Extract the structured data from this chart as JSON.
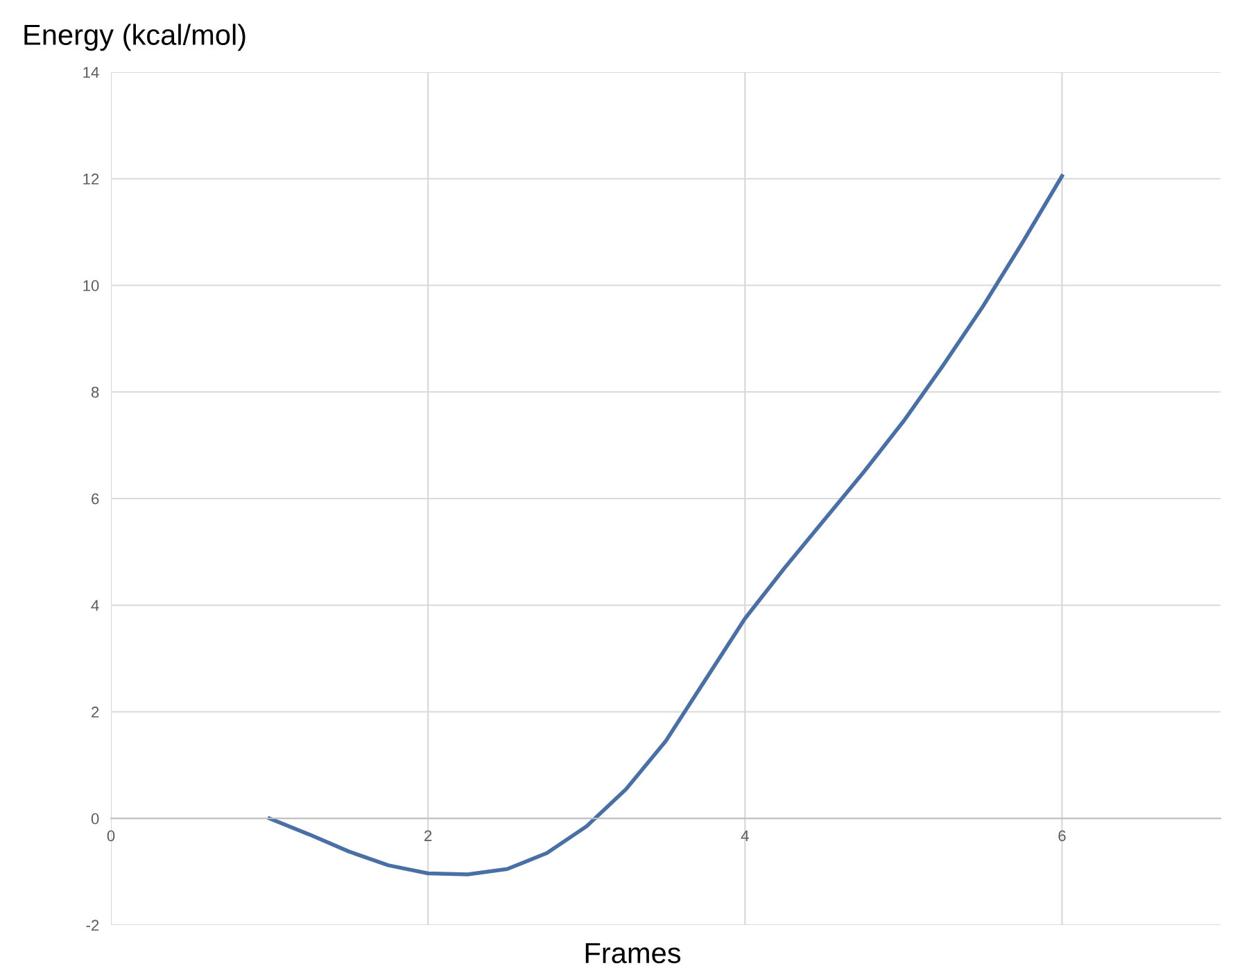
{
  "chart_data": {
    "type": "line",
    "xlabel": "Frames",
    "ylabel": "Energy (kcal/mol)",
    "x": [
      1,
      1.25,
      1.5,
      1.75,
      2,
      2.25,
      2.5,
      2.75,
      3,
      3.25,
      3.5,
      3.75,
      4,
      4.25,
      4.5,
      4.75,
      5,
      5.25,
      5.5,
      5.75,
      6
    ],
    "series": [
      {
        "color": "#4a6fa5",
        "values": [
          0,
          -0.3,
          -0.62,
          -0.88,
          -1.03,
          -1.05,
          -0.95,
          -0.65,
          -0.15,
          0.55,
          1.45,
          2.6,
          3.75,
          4.7,
          5.6,
          6.5,
          7.45,
          8.5,
          9.6,
          10.8,
          12.05
        ]
      }
    ],
    "xlim": [
      0,
      7
    ],
    "xticks": [
      0,
      2,
      4,
      6
    ],
    "ylim": [
      -2,
      14
    ],
    "yticks": [
      -2,
      0,
      2,
      4,
      6,
      8,
      10,
      12,
      14
    ],
    "grid": true,
    "marker": "none",
    "line_style": "solid"
  }
}
